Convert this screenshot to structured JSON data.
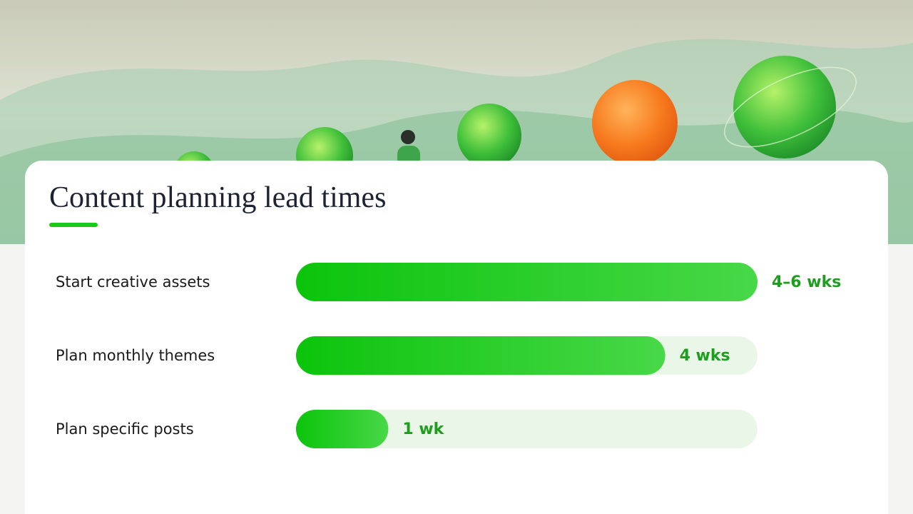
{
  "chart_data": {
    "type": "bar",
    "orientation": "horizontal",
    "title": "Content planning lead times",
    "categories": [
      "Start creative assets",
      "Plan monthly themes",
      "Plan specific posts"
    ],
    "values": [
      5,
      4,
      1
    ],
    "value_labels": [
      "4–6 wks",
      "4 wks",
      "1 wk"
    ],
    "color": "#1cc81c",
    "xlim": [
      0,
      5
    ]
  }
}
